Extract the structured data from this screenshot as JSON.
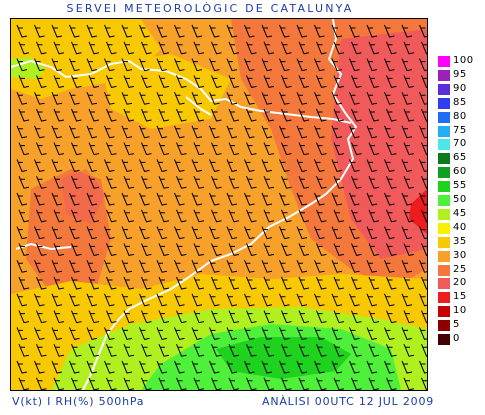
{
  "header": {
    "title": "SERVEI METEOROLÒGIC DE CATALUNYA"
  },
  "legend": {
    "items": [
      {
        "label": "100",
        "color": "#ff00ff"
      },
      {
        "label": "95",
        "color": "#9b22b6"
      },
      {
        "label": "90",
        "color": "#5a2ed6"
      },
      {
        "label": "85",
        "color": "#2f3cf0"
      },
      {
        "label": "80",
        "color": "#1e6ef5"
      },
      {
        "label": "75",
        "color": "#22aef5"
      },
      {
        "label": "70",
        "color": "#4ee6e6"
      },
      {
        "label": "65",
        "color": "#0a7a1a"
      },
      {
        "label": "60",
        "color": "#10a020"
      },
      {
        "label": "55",
        "color": "#1ed21e"
      },
      {
        "label": "50",
        "color": "#4ef03a"
      },
      {
        "label": "45",
        "color": "#b0f020"
      },
      {
        "label": "40",
        "color": "#f8f000"
      },
      {
        "label": "35",
        "color": "#f8c800"
      },
      {
        "label": "30",
        "color": "#f7a02a"
      },
      {
        "label": "25",
        "color": "#f4783c"
      },
      {
        "label": "20",
        "color": "#f05a5a"
      },
      {
        "label": "15",
        "color": "#ee1c1c"
      },
      {
        "label": "10",
        "color": "#c80000"
      },
      {
        "label": "5",
        "color": "#8c0000"
      },
      {
        "label": "0",
        "color": "#420000"
      }
    ]
  },
  "footer": {
    "variables": "V(kt) I RH(%) 500hPa",
    "analysis": "ANÀLISI 00UTC 12 JUL 2009"
  }
}
